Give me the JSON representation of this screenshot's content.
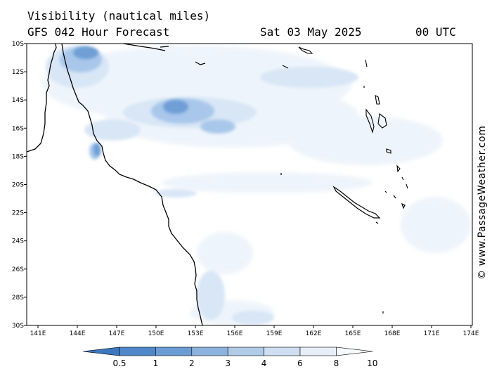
{
  "header": {
    "title": "Visibility (nautical miles)",
    "subtitle": "GFS 042 Hour Forecast",
    "date": "Sat 03 May 2025",
    "time": "00 UTC"
  },
  "copyright": "© www.PassageWeather.com",
  "axes": {
    "lat_labels": [
      "10S",
      "12S",
      "14S",
      "16S",
      "18S",
      "20S",
      "22S",
      "24S",
      "26S",
      "28S",
      "30S"
    ],
    "lon_labels": [
      "141E",
      "144E",
      "147E",
      "150E",
      "153E",
      "156E",
      "159E",
      "162E",
      "165E",
      "168E",
      "171E",
      "174E"
    ]
  },
  "colorbar": {
    "labels": [
      "0.5",
      "1",
      "2",
      "3",
      "4",
      "6",
      "8",
      "10"
    ],
    "colors": [
      "#3c78c0",
      "#4f88ca",
      "#6b9dd4",
      "#8cb3de",
      "#b0cbe8",
      "#cfdff1",
      "#e6eef8",
      "#f6f9fd"
    ]
  },
  "map_colors": {
    "coast": "#000000",
    "fog_dark": "#6f9fd6",
    "fog_mid": "#a9c7ea",
    "fog_light": "#d8e6f6",
    "fog_faint": "#eef4fb"
  }
}
